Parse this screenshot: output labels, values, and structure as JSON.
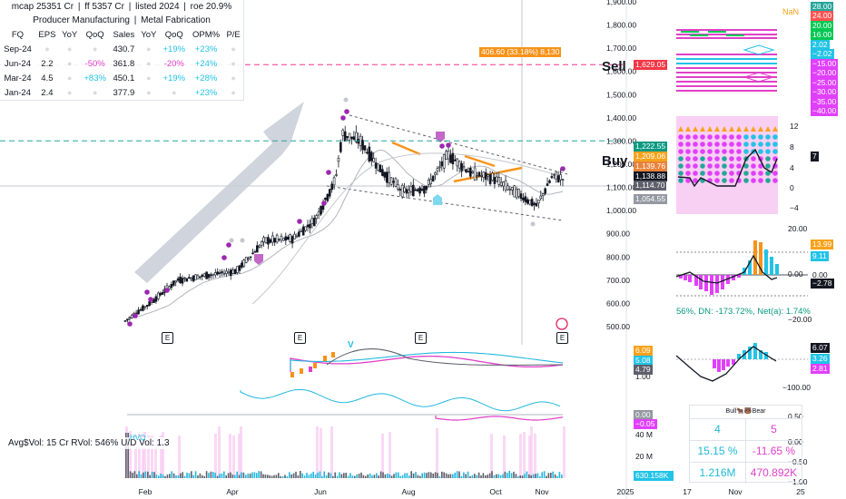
{
  "header": {
    "mcap": "mcap 25351 Cr",
    "ff": "ff 5357 Cr",
    "listed": "listed 2024",
    "roe": "roe 20.9%",
    "sector": "Producer Manufacturing",
    "industry": "Metal Fabrication"
  },
  "fundamentals": {
    "columns": [
      "FQ",
      "EPS",
      "YoY",
      "QoQ",
      "Sales",
      "YoY",
      "QoQ",
      "OPM%",
      "P/E"
    ],
    "rows": [
      {
        "fq": "Sep-24",
        "eps": "",
        "eps_yoy": "",
        "eps_qoq": "",
        "sales": "430.7",
        "sales_yoy": "",
        "sales_qoq": "+19%",
        "opm": "+23%",
        "pe": ""
      },
      {
        "fq": "Jun-24",
        "eps": "2.2",
        "eps_yoy": "",
        "eps_qoq": "-50%",
        "sales": "361.8",
        "sales_yoy": "",
        "sales_qoq": "-20%",
        "opm": "+24%",
        "pe": ""
      },
      {
        "fq": "Mar-24",
        "eps": "4.5",
        "eps_yoy": "",
        "eps_qoq": "+83%",
        "sales": "450.1",
        "sales_yoy": "",
        "sales_qoq": "+19%",
        "opm": "+28%",
        "pe": ""
      },
      {
        "fq": "Jan-24",
        "eps": "2.4",
        "eps_yoy": "",
        "eps_qoq": "",
        "sales": "377.9",
        "sales_yoy": "",
        "sales_qoq": "",
        "opm": "+23%",
        "pe": ""
      }
    ]
  },
  "annotations": {
    "sell": "Sell",
    "buy": "Buy",
    "earnings_marker": "E",
    "range_label": "406.60 (33.18%) 8,130",
    "nan_label": "NaN"
  },
  "volume_panel": {
    "rvol_text": "Avg$Vol: 15 Cr   RVol: 546%   U/D Vol: 1.3",
    "hvq_label": "HVQ",
    "v_label": "V"
  },
  "bull_bear": {
    "header": "Bull🐂🐻Bear",
    "bull_count": "4",
    "bear_count": "5",
    "bull_pct": "15.15 %",
    "bear_pct": "-11.65 %",
    "bull_vol": "1.216M",
    "bear_vol": "470.892K"
  },
  "price_tags": [
    {
      "text": "1,629.05",
      "color": "#f23645"
    },
    {
      "text": "1,222.55",
      "color": "#089981"
    },
    {
      "text": "1,209.06",
      "color": "#f7a21b"
    },
    {
      "text": "1,139.76",
      "color": "#e8823a"
    },
    {
      "text": "1,138.88",
      "color": "#131722"
    },
    {
      "text": "1,114.70",
      "color": "#5d606b"
    },
    {
      "text": "1,054.55",
      "color": "#9598a1"
    }
  ],
  "ind_tags_top": [
    {
      "text": "28.00",
      "color": "#26a69a"
    },
    {
      "text": "24.00",
      "color": "#ff5252"
    },
    {
      "text": "20.00",
      "color": "#00c853"
    },
    {
      "text": "16.00",
      "color": "#00c853"
    },
    {
      "text": "2.02",
      "color": "#22c3e6"
    },
    {
      "text": "−2.02",
      "color": "#22c3e6"
    },
    {
      "text": "−15.00",
      "color": "#e040fb"
    },
    {
      "text": "−20.00",
      "color": "#e040fb"
    },
    {
      "text": "−25.00",
      "color": "#e040fb"
    },
    {
      "text": "−30.00",
      "color": "#e040fb"
    },
    {
      "text": "−35.00",
      "color": "#e040fb"
    },
    {
      "text": "−40.00",
      "color": "#e040fb"
    }
  ],
  "ind_tags_mid": [
    {
      "text": "7",
      "color": "#131722"
    },
    {
      "text": "13.99",
      "color": "#f7a21b"
    },
    {
      "text": "9.11",
      "color": "#22c3e6"
    },
    {
      "text": "0.00",
      "color": "#ffffff"
    },
    {
      "text": "−2.78",
      "color": "#131722"
    }
  ],
  "ind_tags_low": [
    {
      "text": "6.07",
      "color": "#131722"
    },
    {
      "text": "3.26",
      "color": "#22c3e6"
    },
    {
      "text": "2.81",
      "color": "#e040fb"
    }
  ],
  "small_tags": [
    {
      "text": "6.09",
      "color": "#f7a21b"
    },
    {
      "text": "5.08",
      "color": "#22c3e6"
    },
    {
      "text": "4.79",
      "color": "#5d606b"
    },
    {
      "text": "0.00",
      "color": "#9598a1"
    },
    {
      "text": "−0.05",
      "color": "#e040fb"
    },
    {
      "text": "630.158K",
      "color": "#22c3e6"
    }
  ],
  "axis_texts": {
    "net_text": "56%, DN: -173.72%, Net(a): 1.74%",
    "small_axis_100": "1.00",
    "vol_40m": "40 M",
    "vol_20m": "20 M",
    "ind_axis_right": [
      "12",
      "8",
      "4",
      "0",
      "−4"
    ],
    "ind_axis_mid": [
      "20.00",
      "0.00",
      "−20.00"
    ],
    "ind_axis_low": [
      "−100.00",
      "0.50",
      "0.00",
      "−0.50",
      "−1.00"
    ]
  },
  "chart_data": {
    "type": "candlestick",
    "x_tick_labels": [
      "Feb",
      "Apr",
      "Jun",
      "Aug",
      "Oct",
      "Nov",
      "2025",
      "17",
      "Nov",
      "25"
    ],
    "y_axis": {
      "ticks": [
        500,
        600,
        700,
        800,
        900,
        1000,
        1100,
        1200,
        1300,
        1400,
        1500,
        1600,
        1700,
        1800,
        1900
      ],
      "tick_labels": [
        "500.00",
        "600.00",
        "700.00",
        "800.00",
        "900.00",
        "1,000.00",
        "1,100.00",
        "1,200.00",
        "1,300.00",
        "1,400.00",
        "1,500.00",
        "1,600.00",
        "1,700.00",
        "1,800.00",
        "1,900.00"
      ],
      "range": [
        480,
        1950
      ]
    },
    "levels": {
      "sell": 1629.05,
      "buy": 1222.55,
      "current": 1138.88
    },
    "ohlc_anchors": [
      {
        "date": "2024-01-15",
        "close": 525
      },
      {
        "date": "2024-02-01",
        "close": 600
      },
      {
        "date": "2024-02-20",
        "close": 700
      },
      {
        "date": "2024-03-10",
        "close": 720
      },
      {
        "date": "2024-04-01",
        "close": 740
      },
      {
        "date": "2024-04-20",
        "close": 870
      },
      {
        "date": "2024-05-10",
        "close": 880
      },
      {
        "date": "2024-05-25",
        "close": 960
      },
      {
        "date": "2024-06-08",
        "close": 1130
      },
      {
        "date": "2024-06-13",
        "close": 1330
      },
      {
        "date": "2024-06-25",
        "close": 1300
      },
      {
        "date": "2024-07-10",
        "close": 1170
      },
      {
        "date": "2024-07-25",
        "close": 1080
      },
      {
        "date": "2024-08-10",
        "close": 1100
      },
      {
        "date": "2024-08-25",
        "close": 1240
      },
      {
        "date": "2024-09-10",
        "close": 1160
      },
      {
        "date": "2024-09-25",
        "close": 1140
      },
      {
        "date": "2024-10-10",
        "close": 1080
      },
      {
        "date": "2024-10-25",
        "close": 1020
      },
      {
        "date": "2024-11-05",
        "close": 1150
      },
      {
        "date": "2024-11-12",
        "close": 1139
      }
    ]
  }
}
